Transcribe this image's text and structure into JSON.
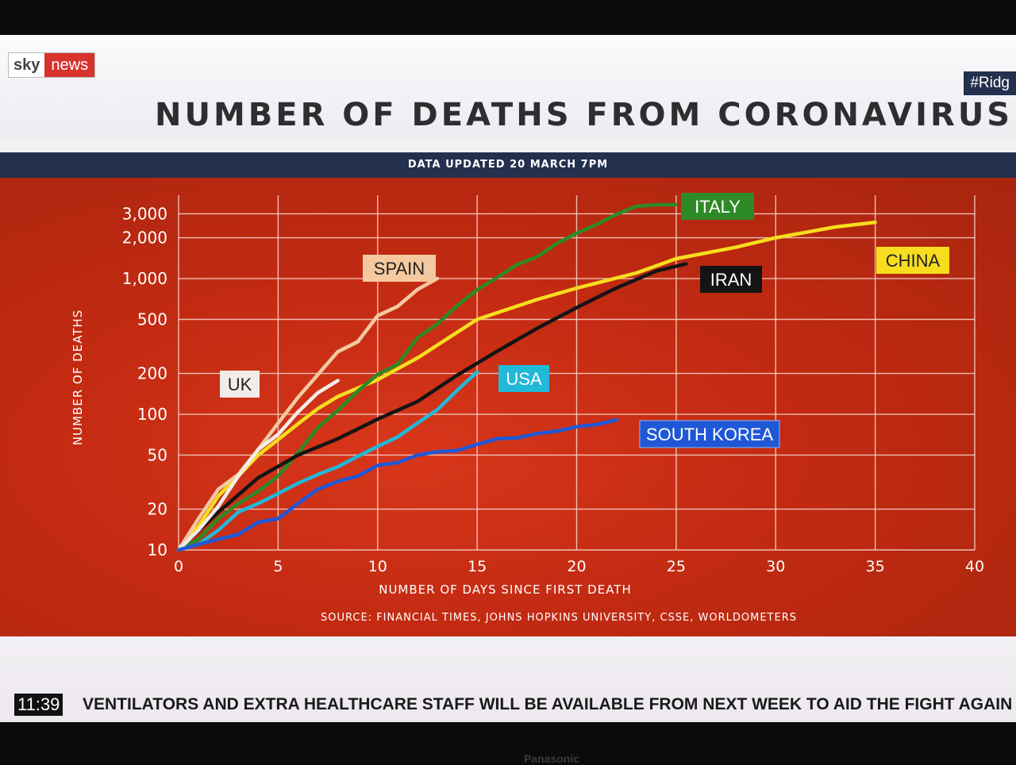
{
  "broadcast": {
    "logo_sky": "sky",
    "logo_news": "news",
    "hashtag": "#Ridg",
    "clock": "11:39",
    "ticker": "VENTILATORS AND EXTRA HEALTHCARE STAFF WILL BE AVAILABLE FROM NEXT WEEK TO AID THE FIGHT AGAIN",
    "tv_brand": "Panasonic"
  },
  "chart_data": {
    "type": "line",
    "title": "NUMBER OF DEATHS FROM CORONAVIRUS",
    "subtitle": "DATA UPDATED 20 MARCH 7PM",
    "xlabel": "NUMBER OF DAYS SINCE FIRST DEATH",
    "ylabel": "NUMBER OF DEATHS",
    "source": "SOURCE: FINANCIAL TIMES, JOHNS HOPKINS UNIVERSITY, CSSE, WORLDOMETERS",
    "xlim": [
      0,
      40
    ],
    "ylim": [
      10,
      3500
    ],
    "yscale": "log",
    "x_ticks": [
      0,
      5,
      10,
      15,
      20,
      25,
      30,
      35,
      40
    ],
    "y_ticks": [
      10,
      20,
      50,
      100,
      200,
      500,
      1000,
      2000,
      3000
    ],
    "y_tick_labels": [
      "10",
      "20",
      "50",
      "100",
      "200",
      "500",
      "1,000",
      "2,000",
      "3,000"
    ],
    "series": [
      {
        "name": "CHINA",
        "color": "#f7dd1e",
        "label_bg": "#f7dd1e",
        "label_fg": "#222222",
        "x": [
          0,
          1,
          2,
          3,
          4,
          5,
          6,
          7,
          8,
          10,
          12,
          15,
          18,
          20,
          23,
          25,
          28,
          30,
          33,
          35
        ],
        "y": [
          10,
          15,
          25,
          35,
          50,
          65,
          85,
          110,
          135,
          180,
          260,
          500,
          700,
          850,
          1100,
          1400,
          1700,
          2000,
          2400,
          2600
        ]
      },
      {
        "name": "ITALY",
        "color": "#2e8a26",
        "label_bg": "#2e8a26",
        "label_fg": "#ffffff",
        "x": [
          0,
          1,
          2,
          3,
          4,
          5,
          6,
          7,
          8,
          9,
          10,
          11,
          12,
          13,
          14,
          15,
          16,
          17,
          18,
          19,
          20,
          21,
          22,
          23,
          24,
          25
        ],
        "y": [
          10,
          12,
          17,
          22,
          27,
          35,
          52,
          80,
          107,
          148,
          197,
          233,
          366,
          463,
          631,
          827,
          1016,
          1266,
          1441,
          1809,
          2158,
          2503,
          2978,
          3405,
          3600,
          4000
        ]
      },
      {
        "name": "IRAN",
        "color": "#141414",
        "label_bg": "#141414",
        "label_fg": "#ffffff",
        "x": [
          0,
          2,
          4,
          6,
          8,
          10,
          12,
          14,
          16,
          18,
          20,
          22,
          24,
          25.5
        ],
        "y": [
          10,
          19,
          34,
          50,
          66,
          92,
          124,
          194,
          291,
          429,
          611,
          853,
          1135,
          1284
        ]
      },
      {
        "name": "SPAIN",
        "color": "#f4c9a0",
        "label_bg": "#f4c9a0",
        "label_fg": "#222222",
        "x": [
          0,
          1,
          2,
          3,
          4,
          5,
          6,
          7,
          8,
          9,
          10,
          11,
          12,
          13
        ],
        "y": [
          10,
          17,
          28,
          36,
          55,
          86,
          133,
          196,
          289,
          342,
          533,
          623,
          830,
          1002
        ]
      },
      {
        "name": "UK",
        "color": "#f2ece8",
        "label_bg": "#f2ece8",
        "label_fg": "#222222",
        "x": [
          0,
          1,
          2,
          3,
          4,
          5,
          6,
          7,
          8
        ],
        "y": [
          10,
          14,
          21,
          35,
          55,
          71,
          104,
          144,
          177
        ]
      },
      {
        "name": "USA",
        "color": "#22b8d8",
        "label_bg": "#22b8d8",
        "label_fg": "#ffffff",
        "x": [
          0,
          1,
          2,
          3,
          4,
          5,
          6,
          7,
          8,
          9,
          10,
          11,
          12,
          13,
          14,
          15
        ],
        "y": [
          10,
          11,
          14,
          19,
          22,
          26,
          31,
          36,
          41,
          49,
          58,
          68,
          86,
          108,
          150,
          205
        ]
      },
      {
        "name": "SOUTH KOREA",
        "color": "#1f58d6",
        "label_bg": "#1f58d6",
        "label_fg": "#ffffff",
        "x": [
          0,
          1,
          2,
          3,
          4,
          5,
          6,
          7,
          8,
          9,
          10,
          11,
          12,
          13,
          14,
          15,
          16,
          17,
          18,
          19,
          20,
          21,
          22
        ],
        "y": [
          10,
          11,
          12,
          13,
          16,
          17,
          22,
          28,
          32,
          35,
          42,
          44,
          50,
          53,
          54,
          60,
          66,
          67,
          72,
          75,
          81,
          84,
          91
        ]
      }
    ]
  }
}
